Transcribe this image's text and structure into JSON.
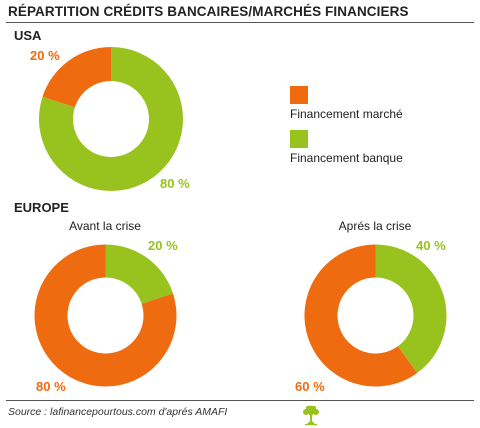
{
  "title": "RÉPARTITION CRÉDITS BANCAIRES/MARCHÉS FINANCIERS",
  "colors": {
    "marche": "#ef6b10",
    "banque": "#98c21d",
    "text": "#222222"
  },
  "sections": {
    "usa": "USA",
    "europe": "EUROPE"
  },
  "legend": {
    "marche": "Financement marché",
    "banque": "Financement banque"
  },
  "chart_data": [
    {
      "type": "pie",
      "title": "",
      "section": "USA",
      "labels": [
        "Financement marché",
        "Financement banque"
      ],
      "values": [
        20,
        80
      ],
      "value_labels": [
        "20 %",
        "80 %"
      ],
      "colors": [
        "#ef6b10",
        "#98c21d"
      ],
      "donut": true
    },
    {
      "type": "pie",
      "title": "Avant la crise",
      "section": "EUROPE",
      "labels": [
        "Financement marché",
        "Financement banque"
      ],
      "values": [
        80,
        20
      ],
      "value_labels": [
        "80 %",
        "20 %"
      ],
      "colors": [
        "#ef6b10",
        "#98c21d"
      ],
      "donut": true
    },
    {
      "type": "pie",
      "title": "Aprés la crise",
      "section": "EUROPE",
      "labels": [
        "Financement marché",
        "Financement banque"
      ],
      "values": [
        60,
        40
      ],
      "value_labels": [
        "60 %",
        "40 %"
      ],
      "colors": [
        "#ef6b10",
        "#98c21d"
      ],
      "donut": true
    }
  ],
  "footer": {
    "source": "Source : lafinancepourtous.com d'aprés AMAFI",
    "logo_icon": "tree-logo-icon"
  }
}
